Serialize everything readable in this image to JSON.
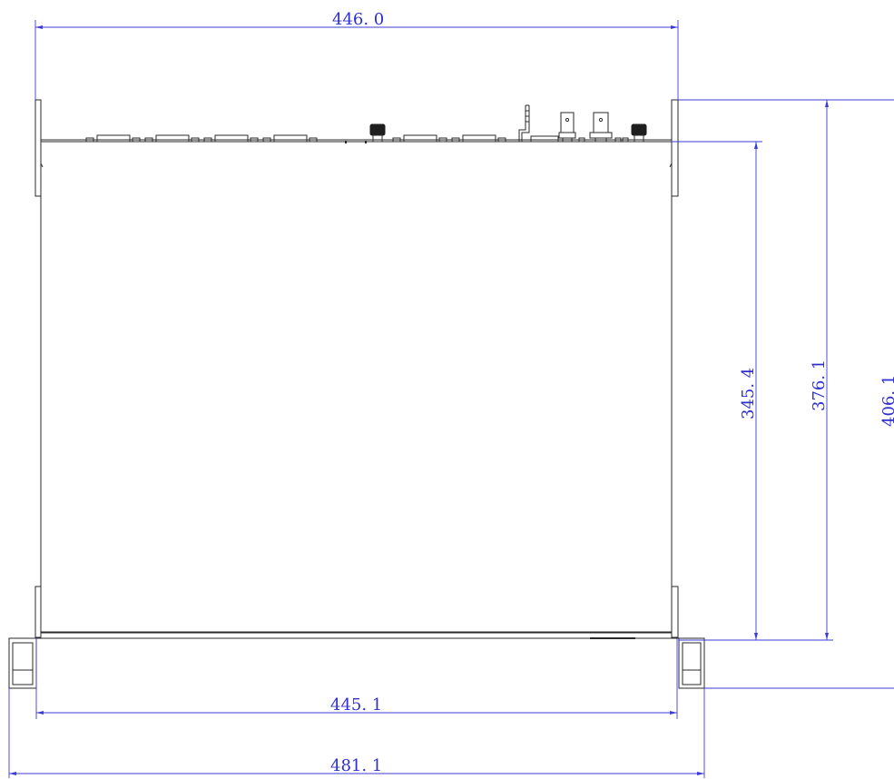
{
  "dimensions": {
    "top_width": "446. 0",
    "bottom_inner_width": "445. 1",
    "bottom_outer_width": "481. 1",
    "inner_depth": "345. 4",
    "mid_depth": "376. 1",
    "outer_depth": "406. 1"
  },
  "colors": {
    "dimension_line": "#3b3bd6",
    "dimension_text": "#2f2fd0",
    "outline": "#2a2a2a"
  }
}
